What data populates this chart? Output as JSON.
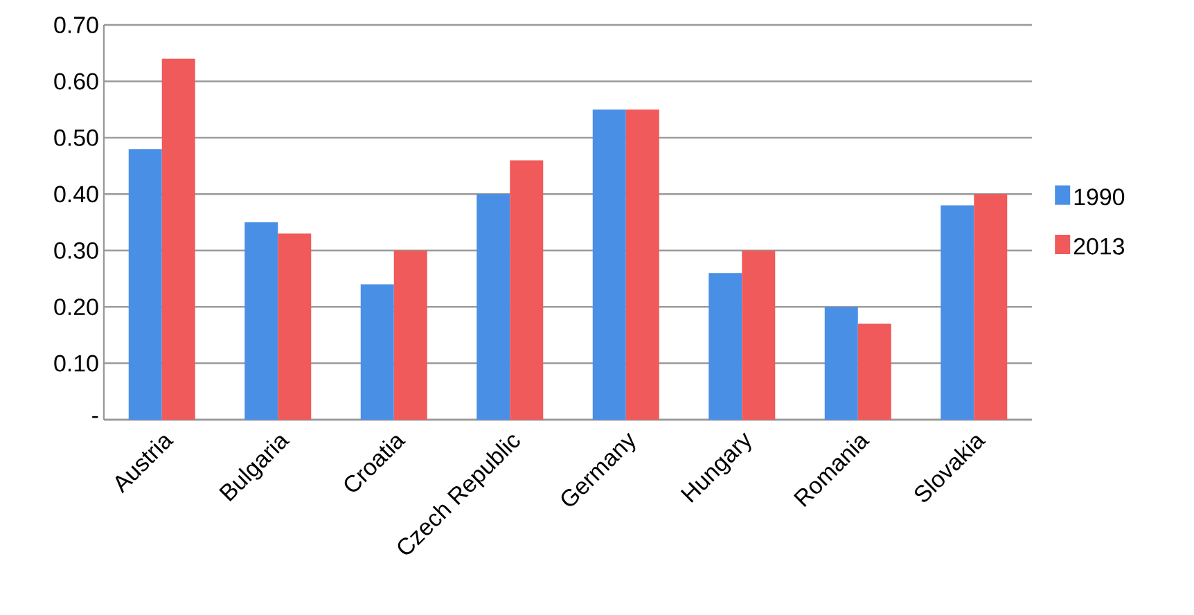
{
  "chart_data": {
    "type": "bar",
    "categories": [
      "Austria",
      "Bulgaria",
      "Croatia",
      "Czech Republic",
      "Germany",
      "Hungary",
      "Romania",
      "Slovakia"
    ],
    "series": [
      {
        "name": "1990",
        "color": "#4a8fe6",
        "values": [
          0.48,
          0.35,
          0.24,
          0.4,
          0.55,
          0.26,
          0.2,
          0.38
        ]
      },
      {
        "name": "2013",
        "color": "#f05a5a",
        "values": [
          0.64,
          0.33,
          0.3,
          0.46,
          0.55,
          0.3,
          0.17,
          0.4
        ]
      }
    ],
    "ylim": [
      0,
      0.7
    ],
    "yticks": [
      {
        "value": 0,
        "label": "-"
      },
      {
        "value": 0.1,
        "label": "0.10"
      },
      {
        "value": 0.2,
        "label": "0.20"
      },
      {
        "value": 0.3,
        "label": "0.30"
      },
      {
        "value": 0.4,
        "label": "0.40"
      },
      {
        "value": 0.5,
        "label": "0.50"
      },
      {
        "value": 0.6,
        "label": "0.60"
      },
      {
        "value": 0.7,
        "label": "0.70"
      }
    ],
    "grid": "y",
    "legend": "right"
  }
}
